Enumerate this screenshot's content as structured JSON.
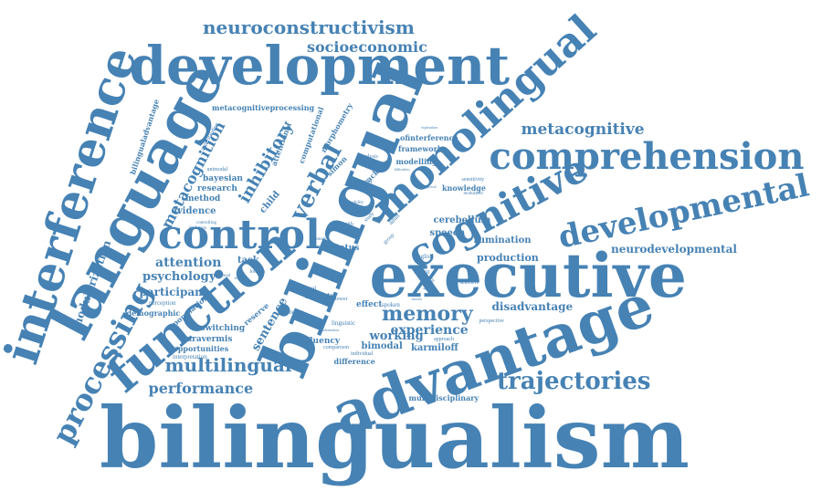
{
  "palette": {
    "text": "#4682B4",
    "background": "#FFFFFF"
  },
  "words": [
    {
      "text": "bilingualism"
    },
    {
      "text": "advantage"
    },
    {
      "text": "executive"
    },
    {
      "text": "bilingual"
    },
    {
      "text": "development"
    },
    {
      "text": "language"
    },
    {
      "text": "interference"
    },
    {
      "text": "function"
    },
    {
      "text": "control"
    },
    {
      "text": "cognitive"
    },
    {
      "text": "monolingual"
    },
    {
      "text": "comprehension"
    },
    {
      "text": "developmental"
    },
    {
      "text": "processing"
    },
    {
      "text": "trajectories"
    },
    {
      "text": "neuroconstructivism"
    },
    {
      "text": "socioeconomic"
    },
    {
      "text": "metacognitive"
    },
    {
      "text": "multilingual"
    },
    {
      "text": "performance"
    },
    {
      "text": "memory"
    },
    {
      "text": "experience"
    },
    {
      "text": "attention"
    },
    {
      "text": "psychology"
    },
    {
      "text": "participant"
    },
    {
      "text": "metacognition"
    },
    {
      "text": "inhibitory"
    },
    {
      "text": "verbal"
    },
    {
      "text": "neurodevelopmental"
    },
    {
      "text": "modularization"
    },
    {
      "text": "bilingualadvantage"
    },
    {
      "text": "metacognitiveprocessing"
    },
    {
      "text": "disadvantage"
    },
    {
      "text": "production"
    },
    {
      "text": "rumination"
    },
    {
      "text": "cerebellum"
    },
    {
      "text": "speech"
    },
    {
      "text": "knowledge"
    },
    {
      "text": "sentence"
    },
    {
      "text": "working"
    },
    {
      "text": "bimodal"
    },
    {
      "text": "karmiloff"
    },
    {
      "text": "multidisciplinary"
    },
    {
      "text": "fluency"
    },
    {
      "text": "difference"
    },
    {
      "text": "paravermis"
    },
    {
      "text": "opportunities"
    },
    {
      "text": "interpretation"
    },
    {
      "text": "switching"
    },
    {
      "text": "demographic"
    },
    {
      "text": "population"
    },
    {
      "text": "perception"
    },
    {
      "text": "evidence"
    },
    {
      "text": "method"
    },
    {
      "text": "research"
    },
    {
      "text": "bayesian"
    },
    {
      "text": "child"
    },
    {
      "text": "attentional"
    },
    {
      "text": "computational"
    },
    {
      "text": "morphometry"
    },
    {
      "text": "simon"
    },
    {
      "text": "task"
    },
    {
      "text": "framework"
    },
    {
      "text": "modelling"
    },
    {
      "text": "ofinterference"
    },
    {
      "text": "tracking"
    },
    {
      "text": "analysis"
    },
    {
      "text": "disorder"
    },
    {
      "text": "english"
    },
    {
      "text": "infant"
    },
    {
      "text": "adult"
    },
    {
      "text": "effect"
    },
    {
      "text": "spoken"
    },
    {
      "text": "anxiety"
    },
    {
      "text": "visual"
    },
    {
      "text": "linguistic"
    },
    {
      "text": "finding"
    },
    {
      "text": "reserve"
    },
    {
      "text": "status"
    },
    {
      "text": "brain"
    },
    {
      "text": "smith"
    },
    {
      "text": "tower"
    },
    {
      "text": "comparison"
    },
    {
      "text": "approach"
    },
    {
      "text": "perspective"
    },
    {
      "text": "selective"
    },
    {
      "text": "sensitivity"
    },
    {
      "text": "unimodal"
    },
    {
      "text": "understanding"
    },
    {
      "text": "modulated"
    },
    {
      "text": "individual"
    },
    {
      "text": "london"
    },
    {
      "text": "functional"
    },
    {
      "text": "science"
    },
    {
      "text": "controlling"
    },
    {
      "text": "inhibition"
    },
    {
      "text": "study"
    },
    {
      "text": "group"
    },
    {
      "text": "ability"
    },
    {
      "text": "domain"
    },
    {
      "text": "spatial"
    },
    {
      "text": "chosen"
    },
    {
      "text": "difficulties"
    },
    {
      "text": "exploration"
    },
    {
      "text": "empirical"
    },
    {
      "text": "information"
    },
    {
      "text": "structural"
    }
  ]
}
